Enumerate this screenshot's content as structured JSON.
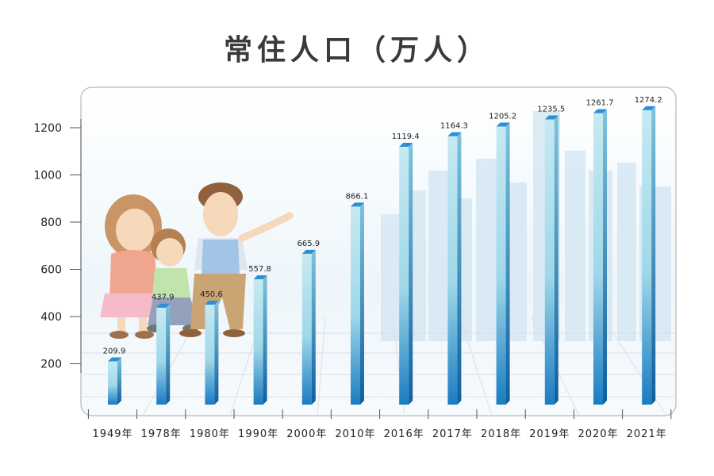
{
  "chart_data": {
    "type": "bar",
    "title": "常住人口（万人）",
    "xlabel": "",
    "ylabel": "",
    "categories": [
      "1949年",
      "1978年",
      "1980年",
      "1990年",
      "2000年",
      "2010年",
      "2016年",
      "2017年",
      "2018年",
      "2019年",
      "2020年",
      "2021年"
    ],
    "values": [
      209.9,
      437.9,
      450.6,
      557.8,
      665.9,
      866.1,
      1119.4,
      1164.3,
      1205.2,
      1235.5,
      1261.7,
      1274.2
    ],
    "value_labels": [
      "209.9",
      "437.9",
      "450.6",
      "557.8",
      "665.9",
      "866.1",
      "1119.4",
      "1164.3",
      "1205.2",
      "1235.5",
      "1261.7",
      "1274.2"
    ],
    "yticks": [
      "200",
      "400",
      "600",
      "800",
      "1000",
      "1200"
    ],
    "ylim": [
      0,
      1300
    ],
    "grid": false,
    "legend": "none",
    "colors": {
      "bar_light": "#bfe6f0",
      "bar_mid": "#8ed3e6",
      "bar_dark": "#1e7fc4",
      "bar_top": "#2b8fd6"
    }
  }
}
